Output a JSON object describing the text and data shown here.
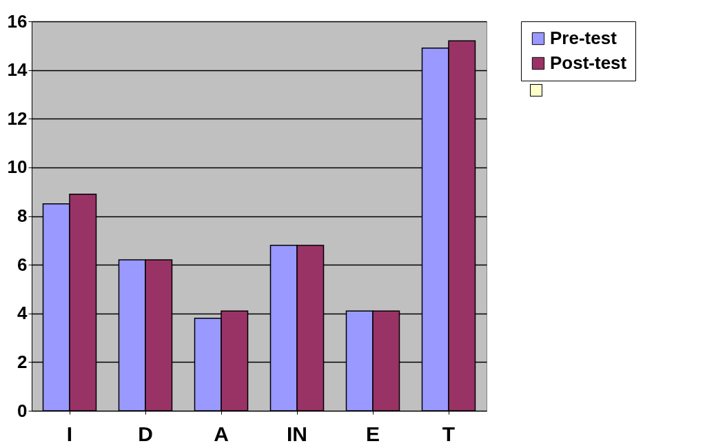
{
  "chart_data": {
    "type": "bar",
    "categories": [
      "I",
      "D",
      "A",
      "IN",
      "E",
      "T"
    ],
    "series": [
      {
        "name": "Pre-test",
        "color": "#9999ff",
        "values": [
          8.5,
          6.2,
          3.8,
          6.8,
          4.1,
          14.9
        ]
      },
      {
        "name": "Post-test",
        "color": "#993366",
        "values": [
          8.9,
          6.2,
          4.1,
          6.8,
          4.1,
          15.2
        ]
      }
    ],
    "ylim": [
      0,
      16
    ],
    "yticks": [
      0,
      2,
      4,
      6,
      8,
      10,
      12,
      14,
      16
    ],
    "grid": "y",
    "legend": "right"
  }
}
